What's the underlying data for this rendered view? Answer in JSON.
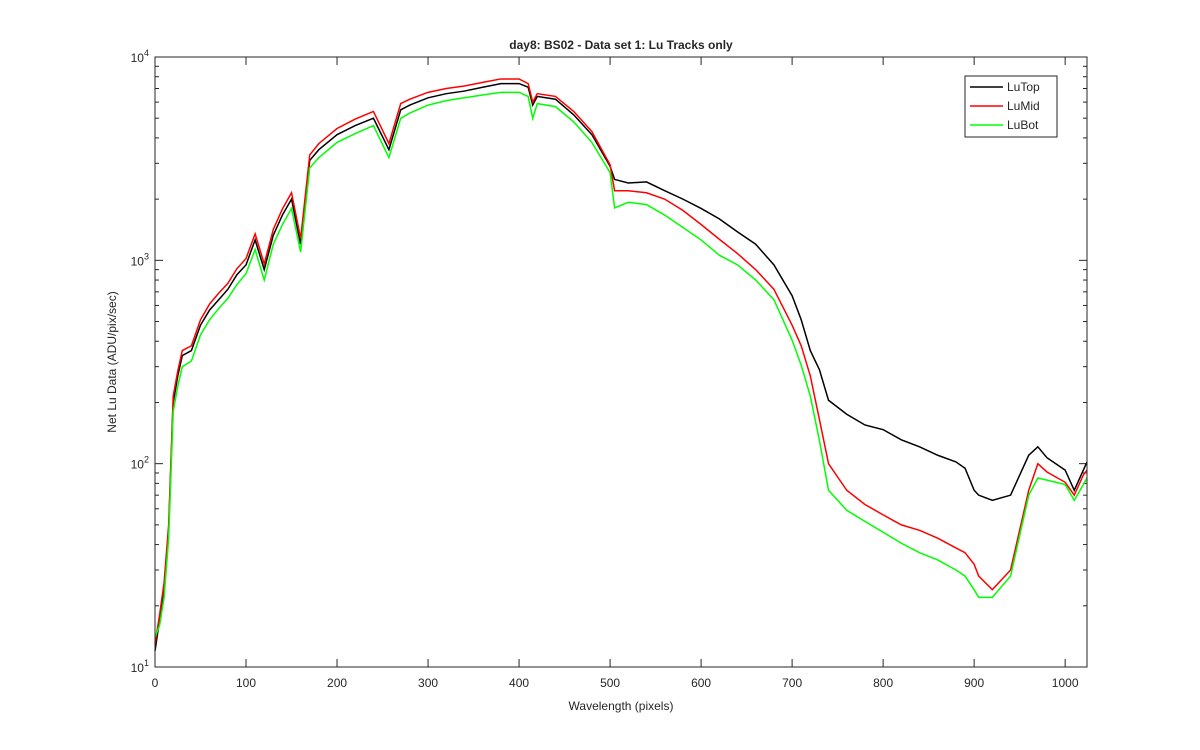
{
  "chart_data": {
    "type": "line",
    "title": "day8: BS02 - Data set 1: Lu Tracks only",
    "xlabel": "Wavelength (pixels)",
    "ylabel": "Net Lu Data (ADU/pix/sec)",
    "log_y": true,
    "legend": "upper right",
    "x": [
      0,
      5,
      10,
      15,
      20,
      25,
      30,
      40,
      50,
      60,
      70,
      80,
      90,
      100,
      110,
      120,
      130,
      140,
      150,
      160,
      170,
      180,
      200,
      220,
      240,
      257,
      270,
      280,
      300,
      320,
      340,
      360,
      380,
      400,
      410,
      415,
      420,
      440,
      460,
      480,
      500,
      505,
      520,
      540,
      560,
      580,
      600,
      620,
      640,
      660,
      680,
      700,
      710,
      720,
      730,
      740,
      760,
      780,
      800,
      820,
      840,
      860,
      880,
      890,
      900,
      905,
      920,
      940,
      960,
      970,
      980,
      1000,
      1010,
      1020,
      1024
    ],
    "series": [
      {
        "name": "LuTop",
        "color": "#000000",
        "values": [
          12,
          17,
          24,
          47,
          200,
          270,
          340,
          360,
          480,
          570,
          640,
          720,
          850,
          950,
          1260,
          900,
          1330,
          1670,
          2000,
          1200,
          3100,
          3500,
          4150,
          4600,
          5000,
          3500,
          5500,
          5800,
          6300,
          6600,
          6800,
          7100,
          7400,
          7400,
          7100,
          5800,
          6400,
          6200,
          5200,
          4150,
          2900,
          2500,
          2400,
          2430,
          2200,
          2000,
          1800,
          1600,
          1380,
          1200,
          950,
          670,
          510,
          360,
          290,
          205,
          175,
          155,
          147,
          131,
          121,
          110,
          102,
          95,
          74,
          70,
          66,
          70,
          110,
          121,
          107,
          93,
          74,
          93,
          102
        ]
      },
      {
        "name": "LuMid",
        "color": "#ff0000",
        "values": [
          13,
          18,
          26,
          50,
          215,
          285,
          360,
          380,
          510,
          610,
          690,
          770,
          910,
          1020,
          1350,
          960,
          1420,
          1790,
          2150,
          1280,
          3300,
          3750,
          4450,
          4950,
          5400,
          3750,
          5900,
          6200,
          6700,
          7000,
          7200,
          7500,
          7800,
          7800,
          7400,
          6000,
          6600,
          6400,
          5400,
          4300,
          2950,
          2200,
          2200,
          2150,
          2000,
          1760,
          1500,
          1270,
          1080,
          900,
          720,
          480,
          380,
          270,
          165,
          100,
          74,
          63,
          56,
          50,
          47,
          43,
          38.5,
          36.5,
          32,
          28,
          24,
          30,
          74,
          100,
          91,
          81,
          70,
          88,
          93
        ]
      },
      {
        "name": "LuBot",
        "color": "#00ff00",
        "values": [
          14,
          16,
          22,
          43,
          180,
          240,
          300,
          320,
          430,
          510,
          580,
          650,
          760,
          860,
          1130,
          800,
          1200,
          1500,
          1800,
          1100,
          2850,
          3200,
          3800,
          4200,
          4600,
          3200,
          5000,
          5300,
          5800,
          6100,
          6300,
          6500,
          6700,
          6700,
          6400,
          5000,
          5900,
          5700,
          4800,
          3800,
          2700,
          1810,
          1930,
          1880,
          1670,
          1450,
          1260,
          1060,
          950,
          800,
          640,
          405,
          305,
          215,
          130,
          74,
          59,
          52,
          46,
          40.6,
          36.5,
          33.6,
          30,
          28,
          24,
          22,
          22,
          28,
          70,
          85,
          83,
          79,
          66,
          79,
          85
        ]
      }
    ],
    "xlim": [
      0,
      1024
    ],
    "xticks": [
      0,
      100,
      200,
      300,
      400,
      500,
      600,
      700,
      800,
      900,
      1000
    ],
    "ylim": [
      10,
      10000
    ],
    "yticks": [
      {
        "value": 10,
        "label": "10^1"
      },
      {
        "value": 100,
        "label": "10^2"
      },
      {
        "value": 1000,
        "label": "10^3"
      },
      {
        "value": 10000,
        "label": "10^4"
      }
    ]
  }
}
